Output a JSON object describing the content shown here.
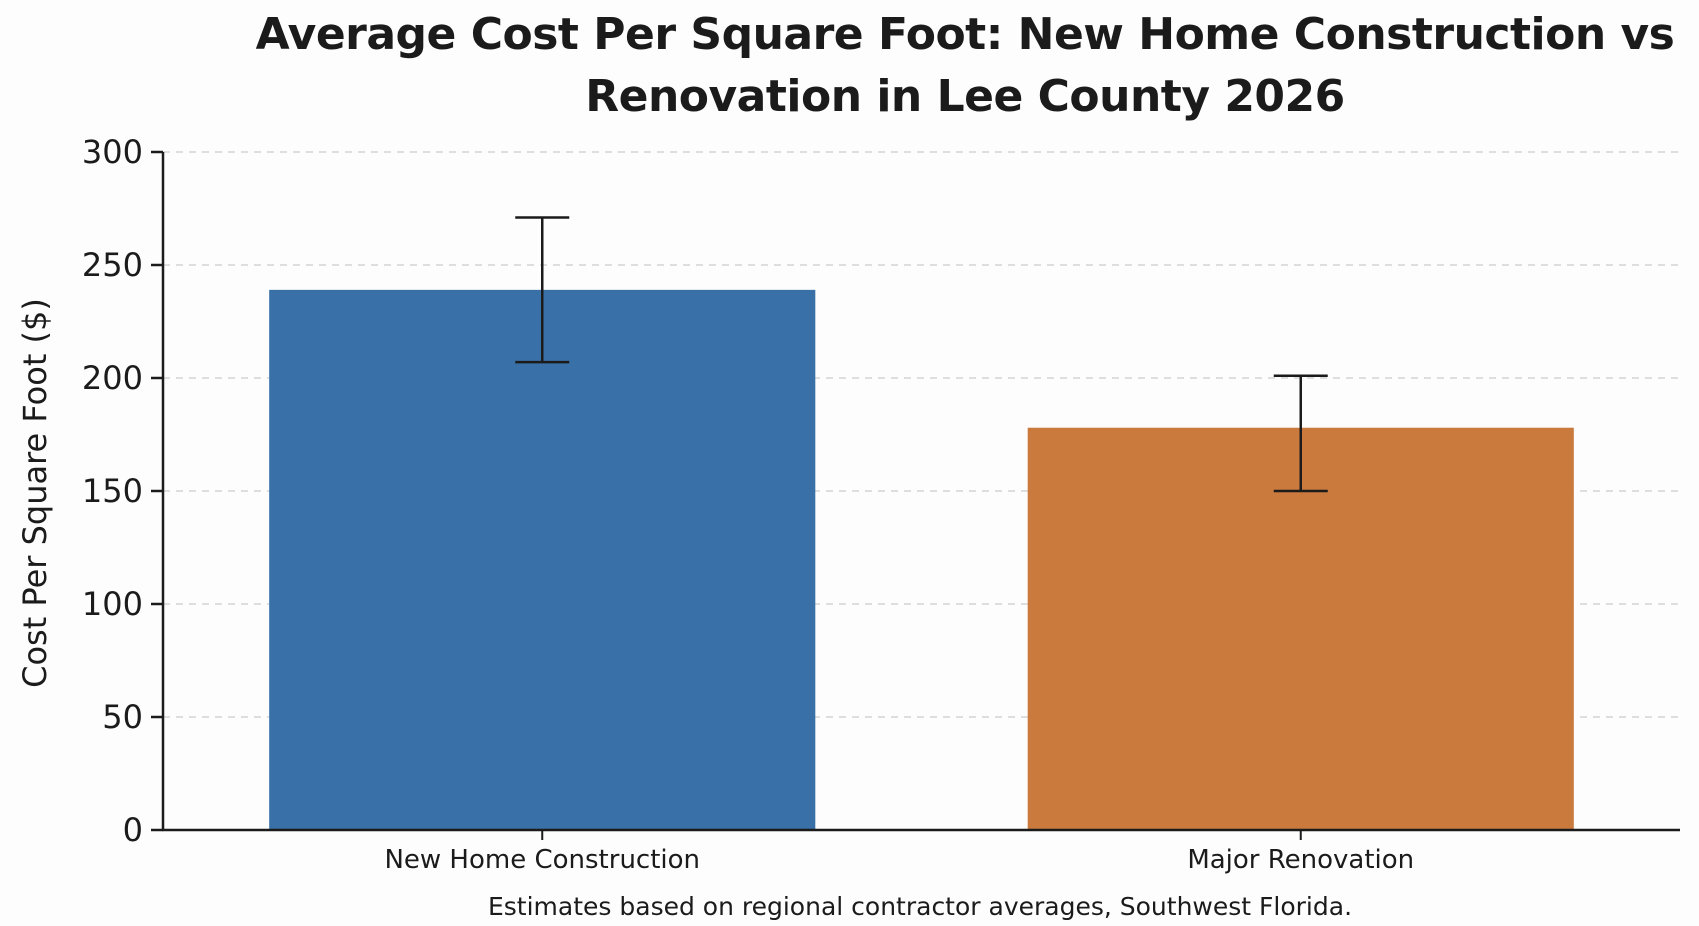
{
  "chart_data": {
    "type": "bar",
    "title": "Average Cost Per Square Foot: New Home Construction vs Renovation in Lee County 2026",
    "ylabel": "Cost Per Square Foot ($)",
    "xlabel": "",
    "categories": [
      "New Home Construction",
      "Major Renovation"
    ],
    "values": [
      239,
      178
    ],
    "error_bars": [
      {
        "low": 207,
        "high": 271
      },
      {
        "low": 150,
        "high": 201
      }
    ],
    "colors": [
      "#3a70a8",
      "#cb7a3e"
    ],
    "ylim": [
      0,
      300
    ],
    "yticks": [
      0,
      50,
      100,
      150,
      200,
      250,
      300
    ],
    "grid": "horizontal dashed",
    "footnote": "Estimates based on regional contractor averages, Southwest Florida."
  }
}
